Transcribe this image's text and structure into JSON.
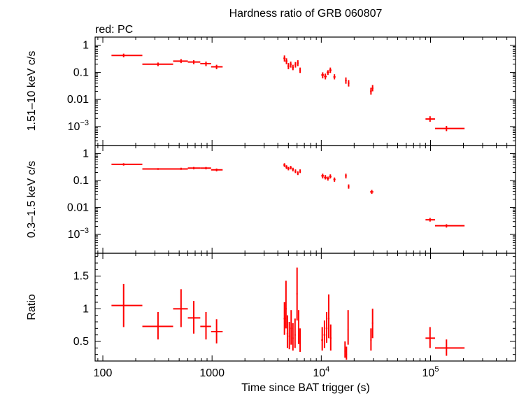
{
  "figure": {
    "title": "Hardness ratio of GRB 060807",
    "legend_label": "red: PC",
    "xlabel": "Time since BAT trigger (s)",
    "series_color": "#ff0000",
    "frame_color": "#000000"
  },
  "x_axis": {
    "scale": "log",
    "range": [
      85,
      600000
    ],
    "tick_labels": [
      {
        "value": 100,
        "label": "100"
      },
      {
        "value": 1000,
        "label": "1000"
      },
      {
        "value": 10000,
        "base": "10",
        "exp": "4"
      },
      {
        "value": 100000,
        "base": "10",
        "exp": "5"
      }
    ]
  },
  "chart_data": [
    {
      "type": "scatter",
      "panel": "hard",
      "ylabel": "1.51–10 keV c/s",
      "yscale": "log",
      "ylim": [
        0.0002,
        2
      ],
      "tick_labels": [
        {
          "value": 1,
          "label": "1"
        },
        {
          "value": 0.1,
          "label": "0.1"
        },
        {
          "value": 0.01,
          "label": "0.01"
        },
        {
          "value": 0.001,
          "base": "10",
          "exp": "−3"
        }
      ],
      "points": [
        {
          "x": 155,
          "xlo": 120,
          "xhi": 230,
          "y": 0.42,
          "ylo": 0.36,
          "yhi": 0.49
        },
        {
          "x": 320,
          "xlo": 230,
          "xhi": 440,
          "y": 0.2,
          "ylo": 0.17,
          "yhi": 0.23
        },
        {
          "x": 520,
          "xlo": 440,
          "xhi": 600,
          "y": 0.26,
          "ylo": 0.22,
          "yhi": 0.31
        },
        {
          "x": 680,
          "xlo": 600,
          "xhi": 780,
          "y": 0.24,
          "ylo": 0.2,
          "yhi": 0.28
        },
        {
          "x": 880,
          "xlo": 780,
          "xhi": 980,
          "y": 0.21,
          "ylo": 0.17,
          "yhi": 0.25
        },
        {
          "x": 1100,
          "xlo": 980,
          "xhi": 1250,
          "y": 0.16,
          "ylo": 0.13,
          "yhi": 0.19
        },
        {
          "x": 4600,
          "xlo": 4500,
          "xhi": 4700,
          "y": 0.33,
          "ylo": 0.25,
          "yhi": 0.42
        },
        {
          "x": 4800,
          "xlo": 4700,
          "xhi": 4900,
          "y": 0.26,
          "ylo": 0.2,
          "yhi": 0.33
        },
        {
          "x": 5000,
          "xlo": 4900,
          "xhi": 5100,
          "y": 0.17,
          "ylo": 0.13,
          "yhi": 0.22
        },
        {
          "x": 5250,
          "xlo": 5150,
          "xhi": 5350,
          "y": 0.2,
          "ylo": 0.15,
          "yhi": 0.25
        },
        {
          "x": 5500,
          "xlo": 5400,
          "xhi": 5600,
          "y": 0.15,
          "ylo": 0.12,
          "yhi": 0.19
        },
        {
          "x": 5800,
          "xlo": 5700,
          "xhi": 5900,
          "y": 0.19,
          "ylo": 0.15,
          "yhi": 0.24
        },
        {
          "x": 6100,
          "xlo": 6000,
          "xhi": 6200,
          "y": 0.22,
          "ylo": 0.17,
          "yhi": 0.28
        },
        {
          "x": 6400,
          "xlo": 6300,
          "xhi": 6500,
          "y": 0.12,
          "ylo": 0.095,
          "yhi": 0.15
        },
        {
          "x": 10300,
          "xlo": 10000,
          "xhi": 10600,
          "y": 0.08,
          "ylo": 0.06,
          "yhi": 0.1
        },
        {
          "x": 10900,
          "xlo": 10600,
          "xhi": 11200,
          "y": 0.07,
          "ylo": 0.055,
          "yhi": 0.09
        },
        {
          "x": 11500,
          "xlo": 11200,
          "xhi": 11800,
          "y": 0.1,
          "ylo": 0.08,
          "yhi": 0.12
        },
        {
          "x": 12100,
          "xlo": 11800,
          "xhi": 12400,
          "y": 0.12,
          "ylo": 0.095,
          "yhi": 0.15
        },
        {
          "x": 13200,
          "xlo": 12900,
          "xhi": 13500,
          "y": 0.068,
          "ylo": 0.055,
          "yhi": 0.085
        },
        {
          "x": 16800,
          "xlo": 16500,
          "xhi": 17100,
          "y": 0.05,
          "ylo": 0.038,
          "yhi": 0.065
        },
        {
          "x": 17800,
          "xlo": 17500,
          "xhi": 18100,
          "y": 0.04,
          "ylo": 0.03,
          "yhi": 0.052
        },
        {
          "x": 28500,
          "xlo": 28000,
          "xhi": 29000,
          "y": 0.02,
          "ylo": 0.015,
          "yhi": 0.027
        },
        {
          "x": 29500,
          "xlo": 29000,
          "xhi": 30000,
          "y": 0.026,
          "ylo": 0.02,
          "yhi": 0.034
        },
        {
          "x": 99000,
          "xlo": 90000,
          "xhi": 110000,
          "y": 0.0019,
          "ylo": 0.0015,
          "yhi": 0.0024
        },
        {
          "x": 140000,
          "xlo": 110000,
          "xhi": 205000,
          "y": 0.00085,
          "ylo": 0.00068,
          "yhi": 0.00105
        }
      ]
    },
    {
      "type": "scatter",
      "panel": "soft",
      "ylabel": "0.3–1.5 keV c/s",
      "yscale": "log",
      "ylim": [
        0.0002,
        2
      ],
      "tick_labels": [
        {
          "value": 1,
          "label": "1"
        },
        {
          "value": 0.1,
          "label": "0.1"
        },
        {
          "value": 0.01,
          "label": "0.01"
        },
        {
          "value": 0.001,
          "base": "10",
          "exp": "−3"
        }
      ],
      "points": [
        {
          "x": 155,
          "xlo": 120,
          "xhi": 230,
          "y": 0.4,
          "ylo": 0.36,
          "yhi": 0.44
        },
        {
          "x": 320,
          "xlo": 230,
          "xhi": 440,
          "y": 0.27,
          "ylo": 0.25,
          "yhi": 0.29
        },
        {
          "x": 520,
          "xlo": 440,
          "xhi": 600,
          "y": 0.27,
          "ylo": 0.25,
          "yhi": 0.3
        },
        {
          "x": 680,
          "xlo": 600,
          "xhi": 780,
          "y": 0.29,
          "ylo": 0.26,
          "yhi": 0.32
        },
        {
          "x": 880,
          "xlo": 780,
          "xhi": 980,
          "y": 0.29,
          "ylo": 0.26,
          "yhi": 0.32
        },
        {
          "x": 1100,
          "xlo": 980,
          "xhi": 1250,
          "y": 0.25,
          "ylo": 0.22,
          "yhi": 0.28
        },
        {
          "x": 4600,
          "xlo": 4500,
          "xhi": 4700,
          "y": 0.38,
          "ylo": 0.32,
          "yhi": 0.44
        },
        {
          "x": 4800,
          "xlo": 4700,
          "xhi": 4900,
          "y": 0.32,
          "ylo": 0.27,
          "yhi": 0.37
        },
        {
          "x": 5000,
          "xlo": 4900,
          "xhi": 5100,
          "y": 0.28,
          "ylo": 0.24,
          "yhi": 0.32
        },
        {
          "x": 5250,
          "xlo": 5150,
          "xhi": 5350,
          "y": 0.3,
          "ylo": 0.26,
          "yhi": 0.35
        },
        {
          "x": 5500,
          "xlo": 5400,
          "xhi": 5600,
          "y": 0.26,
          "ylo": 0.22,
          "yhi": 0.3
        },
        {
          "x": 5800,
          "xlo": 5700,
          "xhi": 5900,
          "y": 0.22,
          "ylo": 0.19,
          "yhi": 0.26
        },
        {
          "x": 6100,
          "xlo": 6000,
          "xhi": 6200,
          "y": 0.19,
          "ylo": 0.16,
          "yhi": 0.22
        },
        {
          "x": 6400,
          "xlo": 6300,
          "xhi": 6500,
          "y": 0.22,
          "ylo": 0.19,
          "yhi": 0.26
        },
        {
          "x": 10300,
          "xlo": 10000,
          "xhi": 10600,
          "y": 0.15,
          "ylo": 0.12,
          "yhi": 0.18
        },
        {
          "x": 10900,
          "xlo": 10600,
          "xhi": 11200,
          "y": 0.13,
          "ylo": 0.11,
          "yhi": 0.16
        },
        {
          "x": 11500,
          "xlo": 11200,
          "xhi": 11800,
          "y": 0.12,
          "ylo": 0.1,
          "yhi": 0.14
        },
        {
          "x": 12100,
          "xlo": 11800,
          "xhi": 12400,
          "y": 0.14,
          "ylo": 0.12,
          "yhi": 0.17
        },
        {
          "x": 13200,
          "xlo": 12900,
          "xhi": 13500,
          "y": 0.11,
          "ylo": 0.09,
          "yhi": 0.13
        },
        {
          "x": 16800,
          "xlo": 16500,
          "xhi": 17100,
          "y": 0.15,
          "ylo": 0.12,
          "yhi": 0.18
        },
        {
          "x": 17800,
          "xlo": 17500,
          "xhi": 18100,
          "y": 0.06,
          "ylo": 0.05,
          "yhi": 0.072
        },
        {
          "x": 29000,
          "xlo": 28000,
          "xhi": 30000,
          "y": 0.038,
          "ylo": 0.032,
          "yhi": 0.045
        },
        {
          "x": 99000,
          "xlo": 90000,
          "xhi": 110000,
          "y": 0.0035,
          "ylo": 0.003,
          "yhi": 0.0041
        },
        {
          "x": 140000,
          "xlo": 110000,
          "xhi": 205000,
          "y": 0.0021,
          "ylo": 0.0018,
          "yhi": 0.0024
        }
      ]
    },
    {
      "type": "scatter",
      "panel": "ratio",
      "ylabel": "Ratio",
      "yscale": "linear",
      "ylim": [
        0.2,
        1.85
      ],
      "tick_labels": [
        {
          "value": 1.5,
          "label": "1.5"
        },
        {
          "value": 1,
          "label": "1"
        },
        {
          "value": 0.5,
          "label": "0.5"
        }
      ],
      "points": [
        {
          "x": 155,
          "xlo": 120,
          "xhi": 230,
          "y": 1.05,
          "ylo": 0.72,
          "yhi": 1.38
        },
        {
          "x": 320,
          "xlo": 230,
          "xhi": 440,
          "y": 0.73,
          "ylo": 0.53,
          "yhi": 0.95
        },
        {
          "x": 520,
          "xlo": 440,
          "xhi": 600,
          "y": 1.0,
          "ylo": 0.72,
          "yhi": 1.3
        },
        {
          "x": 680,
          "xlo": 600,
          "xhi": 780,
          "y": 0.86,
          "ylo": 0.62,
          "yhi": 1.12
        },
        {
          "x": 880,
          "xlo": 780,
          "xhi": 980,
          "y": 0.73,
          "ylo": 0.53,
          "yhi": 0.95
        },
        {
          "x": 1100,
          "xlo": 980,
          "xhi": 1250,
          "y": 0.65,
          "ylo": 0.47,
          "yhi": 0.84
        },
        {
          "x": 4600,
          "xlo": 4520,
          "xhi": 4680,
          "y": 0.85,
          "ylo": 0.6,
          "yhi": 1.1
        },
        {
          "x": 4750,
          "xlo": 4680,
          "xhi": 4820,
          "y": 1.0,
          "ylo": 0.7,
          "yhi": 1.43
        },
        {
          "x": 4900,
          "xlo": 4820,
          "xhi": 4980,
          "y": 0.62,
          "ylo": 0.4,
          "yhi": 0.9
        },
        {
          "x": 5100,
          "xlo": 5020,
          "xhi": 5180,
          "y": 0.58,
          "ylo": 0.38,
          "yhi": 0.8
        },
        {
          "x": 5300,
          "xlo": 5220,
          "xhi": 5380,
          "y": 0.7,
          "ylo": 0.45,
          "yhi": 0.98
        },
        {
          "x": 5500,
          "xlo": 5420,
          "xhi": 5580,
          "y": 0.55,
          "ylo": 0.36,
          "yhi": 0.78
        },
        {
          "x": 5750,
          "xlo": 5670,
          "xhi": 5830,
          "y": 0.6,
          "ylo": 0.4,
          "yhi": 0.85
        },
        {
          "x": 6000,
          "xlo": 5920,
          "xhi": 6080,
          "y": 1.23,
          "ylo": 0.82,
          "yhi": 1.63
        },
        {
          "x": 6200,
          "xlo": 6120,
          "xhi": 6280,
          "y": 0.7,
          "ylo": 0.46,
          "yhi": 0.98
        },
        {
          "x": 6400,
          "xlo": 6320,
          "xhi": 6480,
          "y": 0.5,
          "ylo": 0.34,
          "yhi": 0.7
        },
        {
          "x": 10200,
          "xlo": 10000,
          "xhi": 10400,
          "y": 0.52,
          "ylo": 0.36,
          "yhi": 0.72
        },
        {
          "x": 10700,
          "xlo": 10500,
          "xhi": 10900,
          "y": 0.6,
          "ylo": 0.4,
          "yhi": 0.82
        },
        {
          "x": 11200,
          "xlo": 11000,
          "xhi": 11400,
          "y": 0.7,
          "ylo": 0.48,
          "yhi": 0.95
        },
        {
          "x": 11700,
          "xlo": 11500,
          "xhi": 11900,
          "y": 0.85,
          "ylo": 0.55,
          "yhi": 1.22
        },
        {
          "x": 12200,
          "xlo": 12000,
          "xhi": 12400,
          "y": 0.55,
          "ylo": 0.36,
          "yhi": 0.76
        },
        {
          "x": 16500,
          "xlo": 16300,
          "xhi": 16700,
          "y": 0.35,
          "ylo": 0.25,
          "yhi": 0.5
        },
        {
          "x": 17000,
          "xlo": 16800,
          "xhi": 17200,
          "y": 0.3,
          "ylo": 0.22,
          "yhi": 0.42
        },
        {
          "x": 17600,
          "xlo": 17400,
          "xhi": 17800,
          "y": 0.68,
          "ylo": 0.45,
          "yhi": 0.98
        },
        {
          "x": 28500,
          "xlo": 28100,
          "xhi": 28900,
          "y": 0.52,
          "ylo": 0.36,
          "yhi": 0.7
        },
        {
          "x": 29500,
          "xlo": 29100,
          "xhi": 29900,
          "y": 0.78,
          "ylo": 0.55,
          "yhi": 1.0
        },
        {
          "x": 99000,
          "xlo": 90000,
          "xhi": 110000,
          "y": 0.55,
          "ylo": 0.4,
          "yhi": 0.72
        },
        {
          "x": 140000,
          "xlo": 110000,
          "xhi": 205000,
          "y": 0.4,
          "ylo": 0.28,
          "yhi": 0.53
        }
      ]
    }
  ]
}
